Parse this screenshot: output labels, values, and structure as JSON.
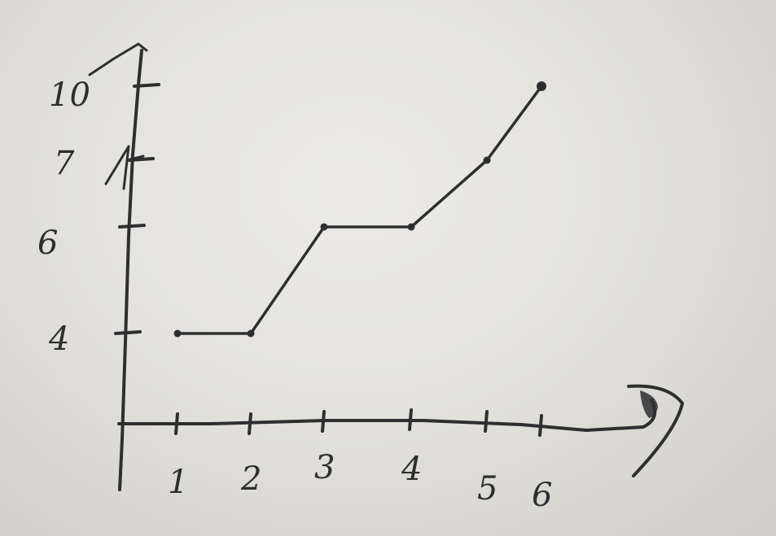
{
  "chart_data": {
    "type": "line",
    "style": "hand-drawn ink on paper",
    "x": [
      1,
      2,
      3,
      4,
      5,
      6
    ],
    "y": [
      4,
      4,
      6,
      6,
      7,
      10
    ],
    "x_ticks": [
      "1",
      "2",
      "3",
      "4",
      "5",
      "6"
    ],
    "y_ticks": [
      "4",
      "6",
      "7",
      "10"
    ],
    "y_tick_values": [
      4,
      6,
      7,
      10
    ],
    "title": "",
    "xlabel": "",
    "ylabel": "",
    "grid": false,
    "legend": "none"
  },
  "colors": {
    "ink": "#2e2e30",
    "paper": "#e6e5e1"
  }
}
